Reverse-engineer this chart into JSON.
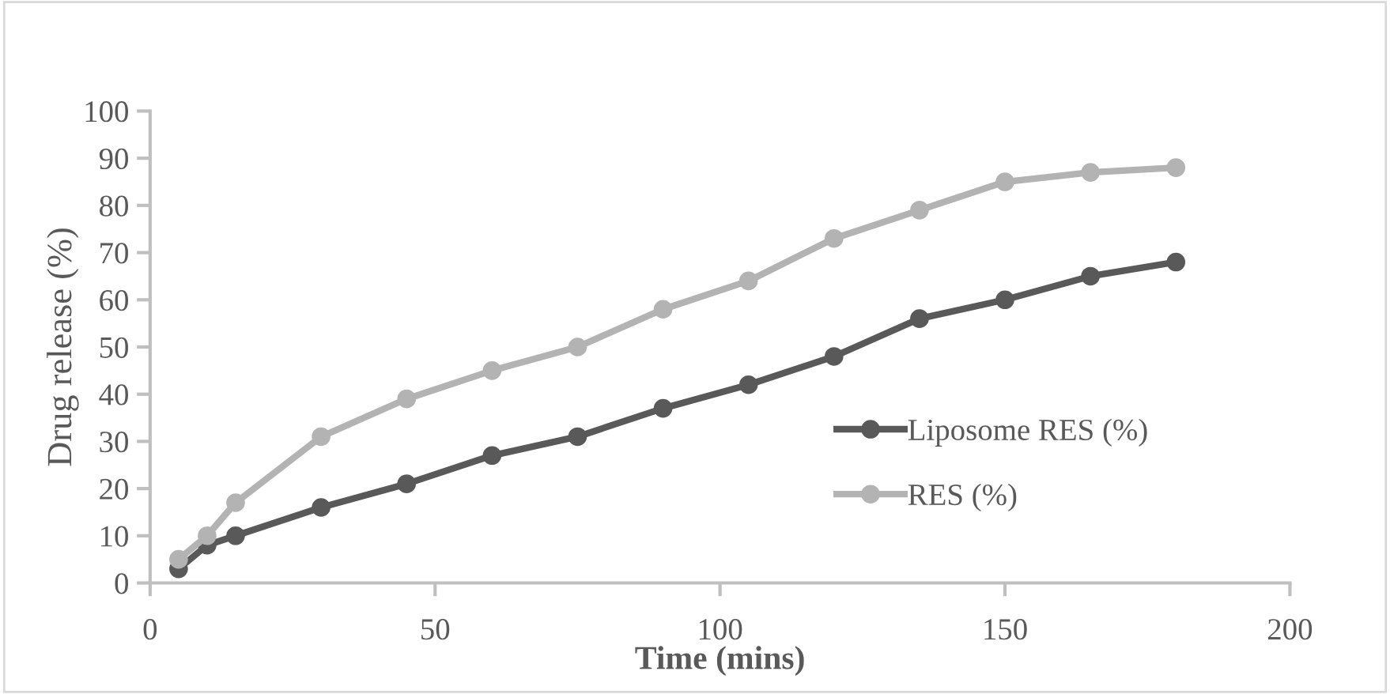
{
  "chart_data": {
    "type": "line",
    "xlabel": "Time (mins)",
    "ylabel": "Drug release (%)",
    "x": [
      5,
      10,
      15,
      30,
      45,
      60,
      75,
      90,
      105,
      120,
      135,
      150,
      165,
      180
    ],
    "series": [
      {
        "name": "Liposome RES (%)",
        "color": "#595959",
        "values": [
          3,
          8,
          10,
          16,
          21,
          27,
          31,
          37,
          42,
          48,
          56,
          60,
          65,
          68
        ]
      },
      {
        "name": "RES (%)",
        "color": "#b3b3b3",
        "values": [
          5,
          10,
          17,
          31,
          39,
          45,
          50,
          58,
          64,
          73,
          79,
          85,
          87,
          88
        ]
      }
    ],
    "xlim": [
      0,
      200
    ],
    "xticks": [
      0,
      50,
      100,
      150,
      200
    ],
    "ylim": [
      0,
      100
    ],
    "yticks": [
      0,
      10,
      20,
      30,
      40,
      50,
      60,
      70,
      80,
      90,
      100
    ],
    "grid": false,
    "legend": "right",
    "marker": "circle",
    "line_style": "solid"
  }
}
